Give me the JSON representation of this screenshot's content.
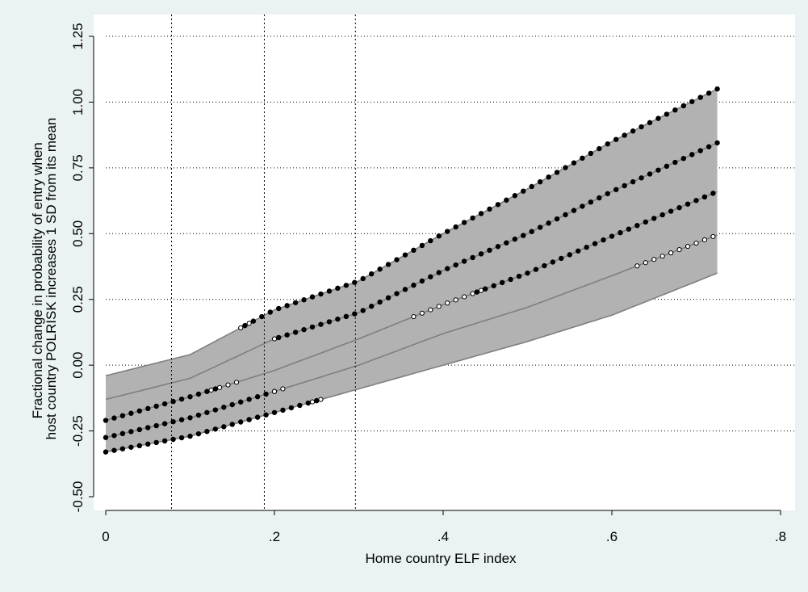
{
  "chart_data": {
    "type": "line",
    "title": "",
    "xlabel": "Home country ELF index",
    "ylabel_lines": [
      "Fractional change in probability of entry when",
      "host country POLRISK increases 1 SD from its mean"
    ],
    "xlim": [
      0,
      0.8
    ],
    "ylim": [
      -0.5,
      1.25
    ],
    "x_ticks": [
      {
        "value": 0,
        "label": "0"
      },
      {
        "value": 0.2,
        "label": ".2"
      },
      {
        "value": 0.4,
        "label": ".4"
      },
      {
        "value": 0.6,
        "label": ".6"
      },
      {
        "value": 0.8,
        "label": ".8"
      }
    ],
    "y_ticks": [
      {
        "value": -0.5,
        "label": "-0.50"
      },
      {
        "value": -0.25,
        "label": "-0.25"
      },
      {
        "value": 0,
        "label": "0.00"
      },
      {
        "value": 0.25,
        "label": "0.25"
      },
      {
        "value": 0.5,
        "label": "0.50"
      },
      {
        "value": 0.75,
        "label": "0.75"
      },
      {
        "value": 1.0,
        "label": "1.00"
      },
      {
        "value": 1.25,
        "label": "1.25"
      }
    ],
    "vertical_reference_lines": [
      0.078,
      0.188,
      0.296
    ],
    "grid": "horizontal dotted",
    "x_range": [
      0,
      0.725
    ],
    "band": {
      "upper": [
        [
          0,
          -0.04
        ],
        [
          0.1,
          0.04
        ],
        [
          0.2,
          0.21
        ],
        [
          0.3,
          0.32
        ],
        [
          0.4,
          0.5
        ],
        [
          0.5,
          0.67
        ],
        [
          0.6,
          0.85
        ],
        [
          0.725,
          1.05
        ]
      ],
      "lower": [
        [
          0,
          -0.33
        ],
        [
          0.1,
          -0.27
        ],
        [
          0.2,
          -0.18
        ],
        [
          0.3,
          -0.09
        ],
        [
          0.4,
          0.0
        ],
        [
          0.5,
          0.09
        ],
        [
          0.6,
          0.19
        ],
        [
          0.725,
          0.35
        ]
      ]
    },
    "series": [
      {
        "key": "upper_bound",
        "points": [
          [
            0,
            -0.04
          ],
          [
            0.1,
            0.04
          ],
          [
            0.2,
            0.21
          ],
          [
            0.3,
            0.32
          ],
          [
            0.4,
            0.5
          ],
          [
            0.5,
            0.67
          ],
          [
            0.6,
            0.85
          ],
          [
            0.725,
            1.05
          ]
        ],
        "filled_markers": [
          [
            0.165,
            0.725
          ]
        ],
        "hollow_markers": [
          [
            0.16,
            0.165
          ]
        ]
      },
      {
        "key": "line_2",
        "points": [
          [
            0,
            -0.13
          ],
          [
            0.1,
            -0.05
          ],
          [
            0.2,
            0.1
          ],
          [
            0.3,
            0.2
          ],
          [
            0.4,
            0.36
          ],
          [
            0.5,
            0.5
          ],
          [
            0.6,
            0.66
          ],
          [
            0.725,
            0.845
          ]
        ],
        "filled_markers": [
          [
            0.205,
            0.725
          ]
        ],
        "hollow_markers": [
          [
            0.2,
            0.205
          ]
        ]
      },
      {
        "key": "line_3",
        "points": [
          [
            0,
            -0.21
          ],
          [
            0.1,
            -0.12
          ],
          [
            0.2,
            -0.02
          ],
          [
            0.3,
            0.1
          ],
          [
            0.4,
            0.23
          ],
          [
            0.5,
            0.35
          ],
          [
            0.6,
            0.49
          ],
          [
            0.725,
            0.66
          ]
        ],
        "filled_markers": [
          [
            0,
            0.125
          ],
          [
            0.44,
            0.725
          ]
        ],
        "hollow_markers": [
          [
            0.125,
            0.155
          ],
          [
            0.365,
            0.44
          ]
        ]
      },
      {
        "key": "line_4",
        "points": [
          [
            0,
            -0.275
          ],
          [
            0.1,
            -0.2
          ],
          [
            0.2,
            -0.1
          ],
          [
            0.3,
            0.0
          ],
          [
            0.4,
            0.12
          ],
          [
            0.5,
            0.22
          ],
          [
            0.6,
            0.34
          ],
          [
            0.725,
            0.495
          ]
        ],
        "filled_markers": [
          [
            0,
            0.2
          ]
        ],
        "hollow_markers": [
          [
            0.2,
            0.21
          ],
          [
            0.63,
            0.725
          ]
        ]
      },
      {
        "key": "lower_bound",
        "points": [
          [
            0,
            -0.33
          ],
          [
            0.1,
            -0.27
          ],
          [
            0.2,
            -0.18
          ],
          [
            0.3,
            -0.09
          ],
          [
            0.4,
            0.0
          ],
          [
            0.5,
            0.09
          ],
          [
            0.6,
            0.19
          ],
          [
            0.725,
            0.35
          ]
        ],
        "filled_markers": [
          [
            0,
            0.245
          ]
        ],
        "hollow_markers": [
          [
            0.245,
            0.25
          ]
        ]
      }
    ],
    "marker_step": 0.01,
    "colors": {
      "background": "#eaf2f3",
      "plot_background": "#ffffff",
      "band_fill": "#b2b2b2",
      "line": "#7f7f7f",
      "marker": "#000000"
    }
  }
}
